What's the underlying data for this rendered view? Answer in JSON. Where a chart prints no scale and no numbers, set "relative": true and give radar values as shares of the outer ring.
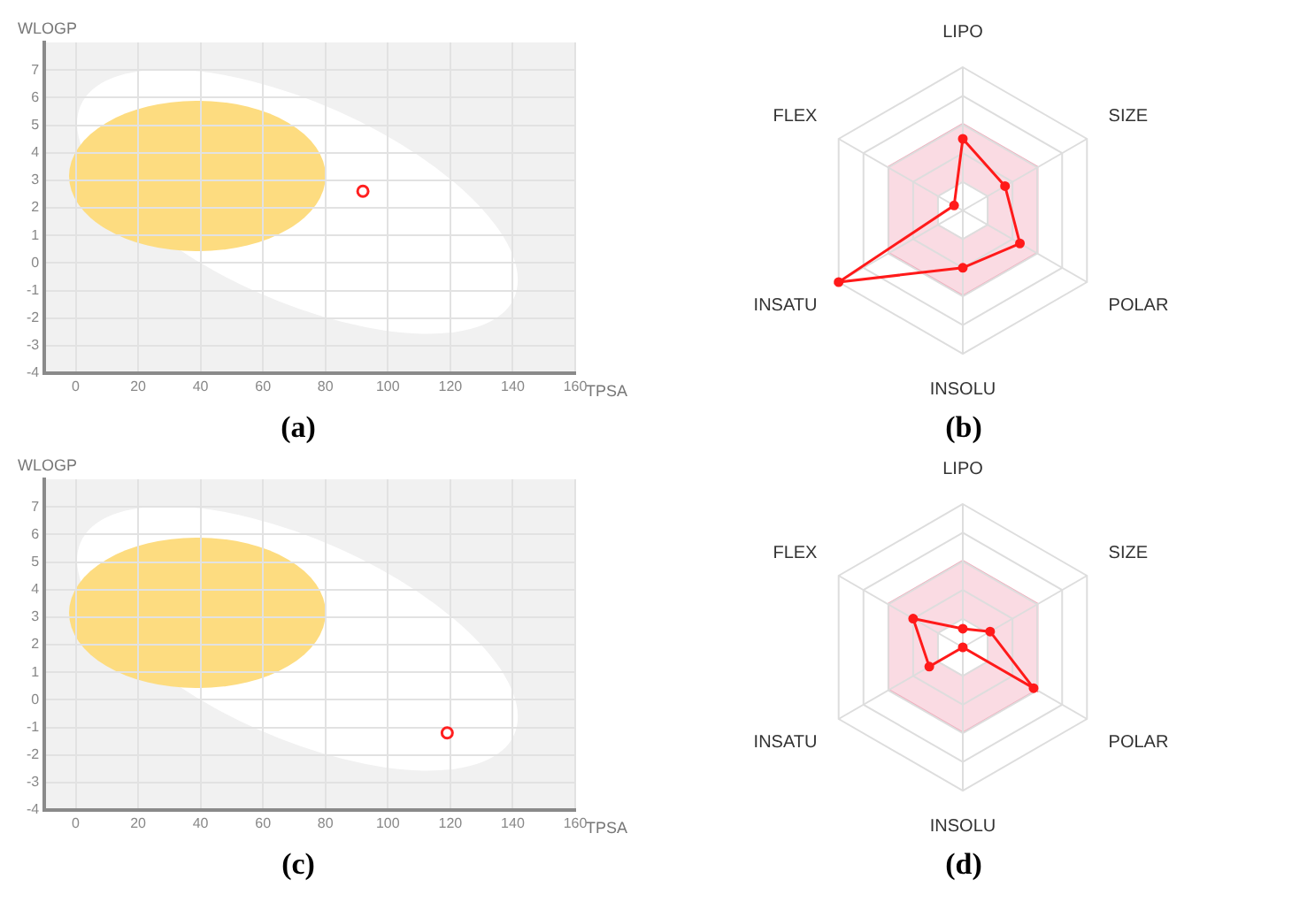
{
  "chart_data": [
    {
      "type": "scatter",
      "title": "(a)",
      "xlabel": "TPSA",
      "ylabel": "WLOGP",
      "x": [
        92
      ],
      "values": [
        2.6
      ],
      "color": "#ff2020",
      "marker": "circle",
      "xlim": [
        -10,
        160
      ],
      "ylim": [
        -4,
        8
      ],
      "xticks": [
        0,
        20,
        40,
        60,
        80,
        100,
        120,
        140,
        160
      ],
      "yticks": [
        -4,
        -3,
        -2,
        -1,
        0,
        1,
        2,
        3,
        4,
        5,
        6,
        7
      ],
      "grid": true
    },
    {
      "type": "radar",
      "title": "(b)",
      "categories": [
        "LIPO",
        "SIZE",
        "POLAR",
        "INSOLU",
        "INSATU",
        "FLEX"
      ],
      "relative": true,
      "marker": "circle",
      "series": [
        {
          "color": "#ff1a1a",
          "values": [
            0.5,
            0.34,
            0.46,
            0.4,
            1,
            0.07
          ]
        }
      ]
    },
    {
      "type": "scatter",
      "title": "(c)",
      "xlabel": "TPSA",
      "ylabel": "WLOGP",
      "x": [
        119
      ],
      "values": [
        -1.2
      ],
      "color": "#ff2020",
      "marker": "circle",
      "xlim": [
        -10,
        160
      ],
      "ylim": [
        -4,
        8
      ],
      "xticks": [
        0,
        20,
        40,
        60,
        80,
        100,
        120,
        140,
        160
      ],
      "yticks": [
        -4,
        -3,
        -2,
        -1,
        0,
        1,
        2,
        3,
        4,
        5,
        6,
        7
      ],
      "grid": true
    },
    {
      "type": "radar",
      "title": "(d)",
      "categories": [
        "LIPO",
        "SIZE",
        "POLAR",
        "INSOLU",
        "INSATU",
        "FLEX"
      ],
      "relative": true,
      "marker": "circle",
      "series": [
        {
          "color": "#ff1a1a",
          "values": [
            0.13,
            0.22,
            0.57,
            0,
            0.27,
            0.4
          ]
        }
      ]
    }
  ]
}
